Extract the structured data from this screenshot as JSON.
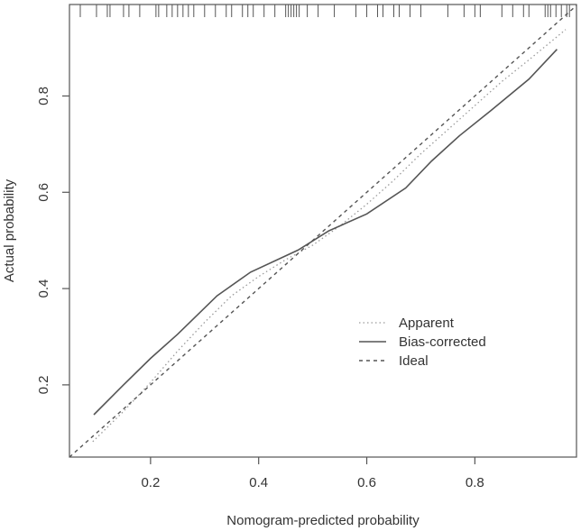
{
  "chart_data": {
    "type": "line",
    "title": "",
    "xlabel": "Nomogram-predicted probability",
    "ylabel": "Actual probability",
    "xlim": [
      0.05,
      0.988
    ],
    "ylim": [
      0.05,
      0.99
    ],
    "xticks": [
      0.2,
      0.4,
      0.6,
      0.8
    ],
    "yticks": [
      0.2,
      0.4,
      0.6,
      0.8
    ],
    "xtick_labels": [
      "0.2",
      "0.4",
      "0.6",
      "0.8"
    ],
    "ytick_labels": [
      "0.2",
      "0.4",
      "0.6",
      "0.8"
    ],
    "grid": false,
    "legend_position": "center-right",
    "series": [
      {
        "name": "Apparent",
        "style": "dotted",
        "x": [
          0.093,
          0.15,
          0.2,
          0.25,
          0.3,
          0.35,
          0.4,
          0.45,
          0.5,
          0.55,
          0.6,
          0.65,
          0.7,
          0.75,
          0.8,
          0.85,
          0.9,
          0.968
        ],
        "y": [
          0.082,
          0.145,
          0.205,
          0.27,
          0.33,
          0.385,
          0.425,
          0.46,
          0.49,
          0.53,
          0.575,
          0.625,
          0.68,
          0.73,
          0.78,
          0.83,
          0.875,
          0.938
        ]
      },
      {
        "name": "Bias-corrected",
        "style": "solid",
        "x": [
          0.095,
          0.15,
          0.2,
          0.25,
          0.323,
          0.385,
          0.473,
          0.53,
          0.6,
          0.672,
          0.72,
          0.772,
          0.83,
          0.9,
          0.952
        ],
        "y": [
          0.138,
          0.2,
          0.255,
          0.305,
          0.385,
          0.434,
          0.48,
          0.52,
          0.555,
          0.609,
          0.665,
          0.718,
          0.77,
          0.835,
          0.897
        ]
      },
      {
        "name": "Ideal",
        "style": "dashed",
        "x": [
          0.05,
          0.988
        ],
        "y": [
          0.05,
          0.988
        ]
      }
    ],
    "rug_top_x": [
      0.07,
      0.1,
      0.12,
      0.125,
      0.15,
      0.16,
      0.18,
      0.21,
      0.215,
      0.23,
      0.24,
      0.25,
      0.26,
      0.27,
      0.28,
      0.3,
      0.32,
      0.34,
      0.35,
      0.37,
      0.38,
      0.39,
      0.41,
      0.43,
      0.45,
      0.455,
      0.46,
      0.465,
      0.47,
      0.475,
      0.49,
      0.51,
      0.54,
      0.58,
      0.6,
      0.62,
      0.63,
      0.65,
      0.66,
      0.68,
      0.7,
      0.75,
      0.78,
      0.8,
      0.81,
      0.85,
      0.87,
      0.89,
      0.9,
      0.93,
      0.935,
      0.94,
      0.95,
      0.96,
      0.97,
      0.975
    ]
  }
}
